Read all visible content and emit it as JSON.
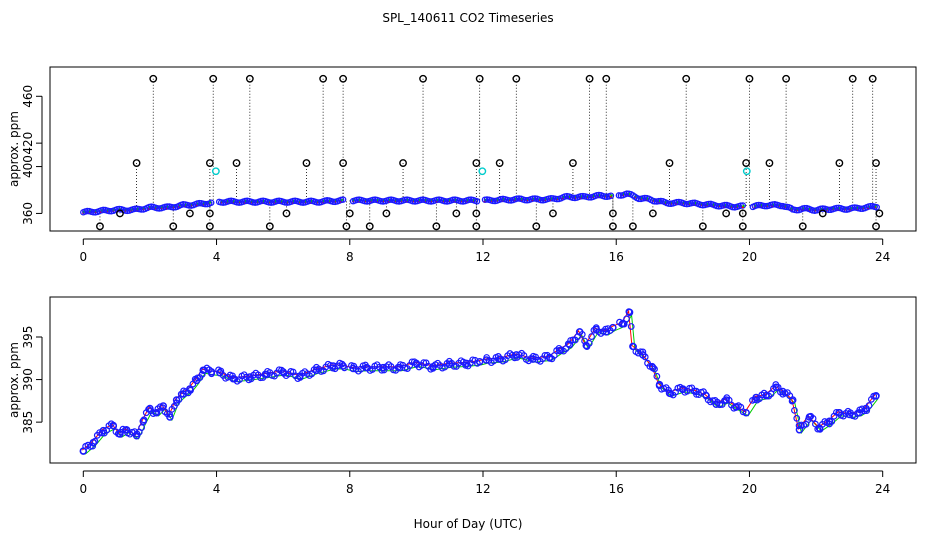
{
  "title": "SPL_140611  CO2 Timeseries",
  "xlabel": "Hour of Day (UTC)",
  "colors": {
    "blue": "#1a1aff",
    "red": "#ff0000",
    "green": "#00cc00",
    "cyan": "#00cccc",
    "black": "#000000"
  },
  "chart_data": [
    {
      "type": "scatter",
      "name": "top",
      "ylabel": "approx. ppm",
      "xlim": [
        -1,
        25
      ],
      "ylim": [
        345,
        485
      ],
      "xticks": [
        0,
        4,
        8,
        12,
        16,
        20,
        24
      ],
      "xtick_labels": [
        "0",
        "4",
        "8",
        "12",
        "16",
        "20",
        "24"
      ],
      "yticks": [
        360,
        400,
        420,
        460
      ],
      "ytick_labels": [
        "360",
        "400",
        "420",
        "460"
      ],
      "baseline": [
        [
          0,
          361
        ],
        [
          0.5,
          362
        ],
        [
          1,
          363
        ],
        [
          1.5,
          363
        ],
        [
          2,
          365
        ],
        [
          2.5,
          365
        ],
        [
          3,
          367
        ],
        [
          3.5,
          368
        ],
        [
          3.8,
          369
        ],
        [
          4.1,
          370
        ],
        [
          5,
          370
        ],
        [
          6,
          370
        ],
        [
          7,
          370
        ],
        [
          7.8,
          371
        ],
        [
          8,
          371
        ],
        [
          9,
          371
        ],
        [
          10,
          371
        ],
        [
          11,
          371
        ],
        [
          12,
          371
        ],
        [
          13,
          372
        ],
        [
          14,
          372
        ],
        [
          14.5,
          374
        ],
        [
          15,
          374
        ],
        [
          15.5,
          375
        ],
        [
          16,
          375
        ],
        [
          16.3,
          377
        ],
        [
          16.7,
          373
        ],
        [
          17,
          372
        ],
        [
          17.5,
          369
        ],
        [
          18,
          369
        ],
        [
          18.5,
          368
        ],
        [
          19,
          367
        ],
        [
          19.5,
          366
        ],
        [
          19.9,
          366
        ],
        [
          20.1,
          366
        ],
        [
          20.5,
          367
        ],
        [
          21,
          367
        ],
        [
          21.3,
          363
        ],
        [
          21.6,
          364
        ],
        [
          22,
          363
        ],
        [
          22.5,
          364
        ],
        [
          23,
          364
        ],
        [
          23.5,
          365
        ],
        [
          23.8,
          366
        ]
      ],
      "upper_outliers": [
        [
          2.1,
          475
        ],
        [
          3.9,
          475
        ],
        [
          5.0,
          475
        ],
        [
          7.2,
          475
        ],
        [
          7.8,
          475
        ],
        [
          10.2,
          475
        ],
        [
          11.9,
          475
        ],
        [
          13.0,
          475
        ],
        [
          15.2,
          475
        ],
        [
          15.7,
          475
        ],
        [
          18.1,
          475
        ],
        [
          20.0,
          475
        ],
        [
          21.1,
          475
        ],
        [
          23.1,
          475
        ],
        [
          23.7,
          475
        ],
        [
          1.6,
          403
        ],
        [
          3.8,
          403
        ],
        [
          4.6,
          403
        ],
        [
          6.7,
          403
        ],
        [
          7.8,
          403
        ],
        [
          9.6,
          403
        ],
        [
          11.8,
          403
        ],
        [
          12.5,
          403
        ],
        [
          14.7,
          403
        ],
        [
          17.6,
          403
        ],
        [
          19.9,
          403
        ],
        [
          20.6,
          403
        ],
        [
          22.7,
          403
        ],
        [
          23.8,
          403
        ]
      ],
      "lower_outliers": [
        [
          0.5,
          349
        ],
        [
          2.7,
          349
        ],
        [
          3.8,
          349
        ],
        [
          5.6,
          349
        ],
        [
          7.9,
          349
        ],
        [
          8.6,
          349
        ],
        [
          10.6,
          349
        ],
        [
          11.8,
          349
        ],
        [
          13.6,
          349
        ],
        [
          15.9,
          349
        ],
        [
          16.5,
          349
        ],
        [
          18.6,
          349
        ],
        [
          19.8,
          349
        ],
        [
          21.6,
          349
        ],
        [
          23.8,
          349
        ],
        [
          1.1,
          360
        ],
        [
          3.2,
          360
        ],
        [
          3.8,
          360
        ],
        [
          6.1,
          360
        ],
        [
          8.0,
          360
        ],
        [
          9.1,
          360
        ],
        [
          11.2,
          360
        ],
        [
          11.8,
          360
        ],
        [
          14.1,
          360
        ],
        [
          15.9,
          360
        ],
        [
          17.1,
          360
        ],
        [
          19.3,
          360
        ],
        [
          19.8,
          360
        ],
        [
          22.2,
          360
        ],
        [
          23.9,
          360
        ]
      ],
      "cyan_points": [
        [
          3.98,
          396
        ],
        [
          11.98,
          396
        ],
        [
          19.92,
          396
        ]
      ]
    },
    {
      "type": "scatter",
      "name": "bottom",
      "ylabel": "approx. ppm",
      "xlim": [
        -1,
        25
      ],
      "ylim": [
        380.2,
        399.7
      ],
      "xticks": [
        0,
        4,
        8,
        12,
        16,
        20,
        24
      ],
      "xtick_labels": [
        "0",
        "4",
        "8",
        "12",
        "16",
        "20",
        "24"
      ],
      "yticks": [
        385,
        390,
        395
      ],
      "ytick_labels": [
        "385",
        "390",
        "395"
      ],
      "series": [
        {
          "name": "ppm",
          "points": [
            [
              0,
              381.6
            ],
            [
              0.3,
              382.6
            ],
            [
              0.6,
              384.0
            ],
            [
              0.9,
              384.6
            ],
            [
              1.1,
              383.6
            ],
            [
              1.3,
              384.1
            ],
            [
              1.6,
              383.4
            ],
            [
              1.8,
              385.1
            ],
            [
              2.0,
              386.6
            ],
            [
              2.2,
              386.1
            ],
            [
              2.4,
              386.9
            ],
            [
              2.6,
              385.6
            ],
            [
              2.8,
              387.6
            ],
            [
              3.0,
              388.3
            ],
            [
              3.2,
              388.9
            ],
            [
              3.4,
              389.9
            ],
            [
              3.6,
              391.1
            ],
            [
              3.85,
              390.9
            ],
            [
              4.1,
              390.8
            ],
            [
              4.5,
              390.1
            ],
            [
              5.0,
              390.3
            ],
            [
              5.5,
              390.6
            ],
            [
              6.0,
              390.9
            ],
            [
              6.5,
              390.4
            ],
            [
              7.0,
              391.1
            ],
            [
              7.5,
              391.6
            ],
            [
              7.8,
              391.6
            ],
            [
              8.1,
              391.3
            ],
            [
              8.5,
              391.4
            ],
            [
              9.0,
              391.4
            ],
            [
              9.5,
              391.4
            ],
            [
              10.0,
              391.9
            ],
            [
              10.5,
              391.5
            ],
            [
              11.0,
              391.8
            ],
            [
              11.5,
              391.9
            ],
            [
              11.9,
              392.1
            ],
            [
              12.1,
              392.3
            ],
            [
              12.5,
              392.4
            ],
            [
              13.0,
              392.9
            ],
            [
              13.5,
              392.4
            ],
            [
              14.0,
              392.6
            ],
            [
              14.3,
              393.4
            ],
            [
              14.6,
              394.1
            ],
            [
              14.9,
              395.6
            ],
            [
              15.1,
              394.0
            ],
            [
              15.4,
              395.9
            ],
            [
              15.7,
              395.6
            ],
            [
              15.9,
              396.1
            ],
            [
              16.2,
              396.6
            ],
            [
              16.4,
              397.9
            ],
            [
              16.5,
              393.9
            ],
            [
              16.8,
              392.9
            ],
            [
              17.1,
              391.4
            ],
            [
              17.3,
              389.4
            ],
            [
              17.6,
              388.4
            ],
            [
              18.0,
              388.9
            ],
            [
              18.4,
              388.6
            ],
            [
              18.7,
              388.1
            ],
            [
              19.0,
              387.1
            ],
            [
              19.3,
              387.6
            ],
            [
              19.6,
              386.8
            ],
            [
              19.9,
              386.1
            ],
            [
              20.2,
              387.9
            ],
            [
              20.5,
              388.1
            ],
            [
              20.8,
              389.1
            ],
            [
              21.0,
              388.6
            ],
            [
              21.3,
              387.6
            ],
            [
              21.5,
              384.1
            ],
            [
              21.8,
              385.6
            ],
            [
              22.1,
              384.3
            ],
            [
              22.4,
              385.1
            ],
            [
              22.7,
              386.1
            ],
            [
              23.0,
              385.9
            ],
            [
              23.3,
              386.1
            ],
            [
              23.5,
              386.6
            ],
            [
              23.8,
              388.1
            ]
          ]
        }
      ]
    }
  ]
}
